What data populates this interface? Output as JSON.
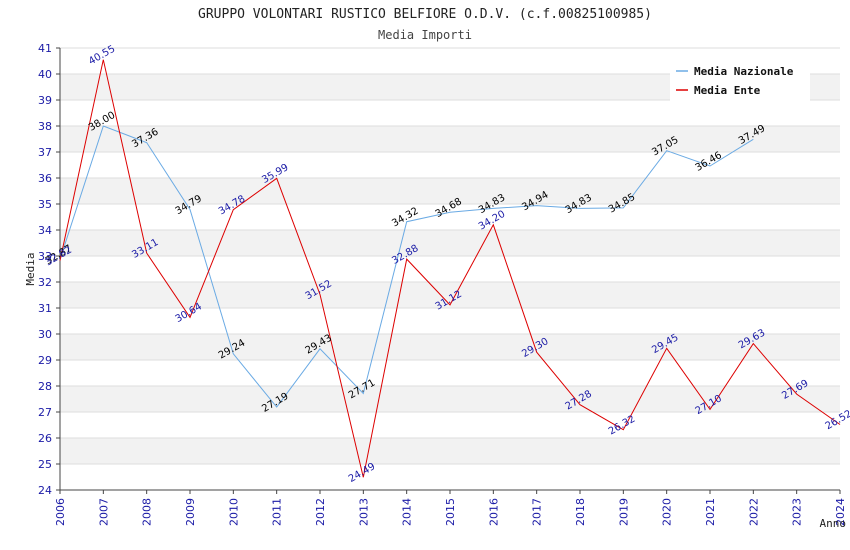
{
  "chart_data": {
    "type": "line",
    "title": "GRUPPO VOLONTARI RUSTICO BELFIORE O.D.V. (c.f.00825100985)",
    "subtitle": "Media Importi",
    "xlabel": "Anno",
    "ylabel": "Media",
    "ylim": [
      24,
      41
    ],
    "grid": "horizontal alternating bands",
    "legend_position": "top-right",
    "x": [
      2006,
      2007,
      2008,
      2009,
      2010,
      2011,
      2012,
      2013,
      2014,
      2015,
      2016,
      2017,
      2018,
      2019,
      2020,
      2021,
      2022,
      2023,
      2024
    ],
    "series": [
      {
        "name": "Media Nazionale",
        "color": "#6aaae4",
        "label_color": "#000000",
        "values": [
          32.87,
          38.0,
          37.36,
          34.79,
          29.24,
          27.19,
          29.43,
          27.71,
          34.32,
          34.68,
          34.83,
          34.94,
          34.83,
          34.85,
          37.05,
          36.46,
          37.49,
          null,
          null
        ],
        "labels": [
          "32.87",
          "38.00",
          "37.36",
          "34.79",
          "29.24",
          "27.19",
          "29.43",
          "27.71",
          "34.32",
          "34.68",
          "34.83",
          "34.94",
          "34.83",
          "34.85",
          "37.05",
          "36.46",
          "37.49",
          "",
          ""
        ]
      },
      {
        "name": "Media Ente",
        "color": "#dd0000",
        "label_color": "#1a1aa6",
        "values": [
          32.82,
          40.55,
          33.11,
          30.64,
          34.78,
          35.99,
          31.52,
          24.49,
          32.88,
          31.12,
          34.2,
          29.3,
          27.28,
          26.32,
          29.45,
          27.1,
          29.63,
          27.69,
          26.52
        ],
        "labels": [
          "32.82",
          "40.55",
          "33.11",
          "30.64",
          "34.78",
          "35.99",
          "31.52",
          "24.49",
          "32.88",
          "31.12",
          "34.20",
          "29.30",
          "27.28",
          "26.32",
          "29.45",
          "27.10",
          "29.63",
          "27.69",
          "26.52"
        ]
      }
    ]
  }
}
